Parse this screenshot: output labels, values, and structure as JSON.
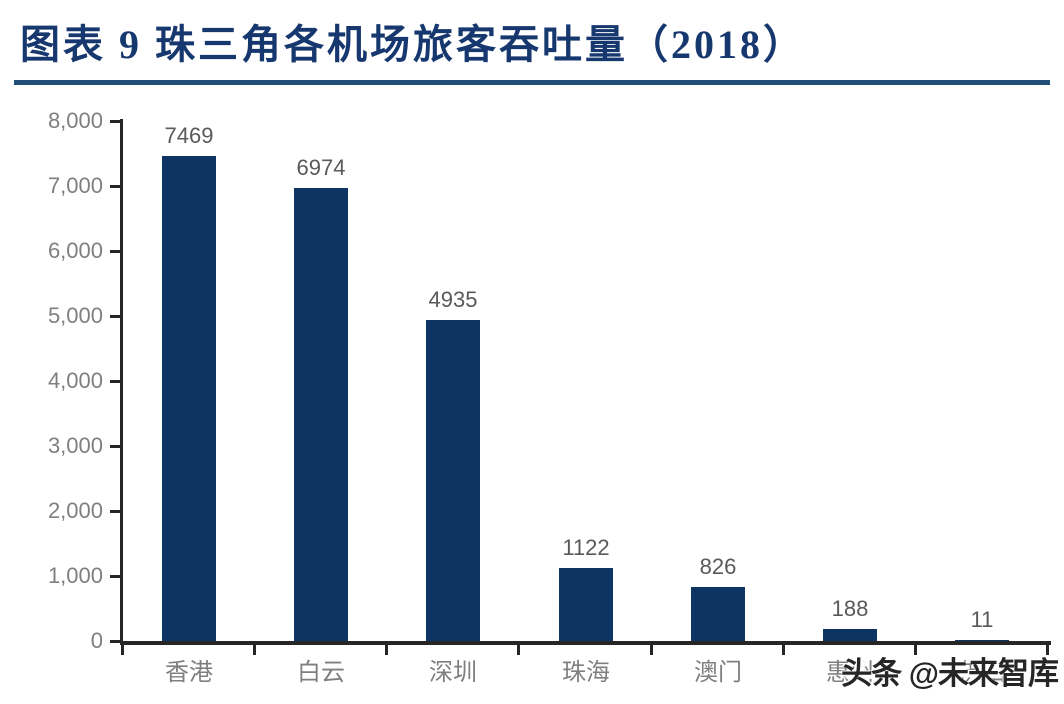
{
  "header": {
    "title": "图表 9  珠三角各机场旅客吞吐量（2018）"
  },
  "chart_data": {
    "type": "bar",
    "title": "珠三角各机场旅客吞吐量（2018）",
    "categories": [
      "香港",
      "白云",
      "深圳",
      "珠海",
      "澳门",
      "惠州",
      "佛山"
    ],
    "values": [
      7469,
      6974,
      4935,
      1122,
      826,
      188,
      11
    ],
    "value_labels": [
      "7469",
      "6974",
      "4935",
      "1122",
      "826",
      "188",
      "11"
    ],
    "xlabel": "",
    "ylabel": "",
    "ylim": [
      0,
      8000
    ],
    "ytick_step": 1000,
    "ytick_labels": [
      "0",
      "1,000",
      "2,000",
      "3,000",
      "4,000",
      "5,000",
      "6,000",
      "7,000",
      "8,000"
    ],
    "grid": false,
    "legend": false
  },
  "watermark": {
    "text": "头条 @未来智库"
  },
  "colors": {
    "bar": "#0e3463",
    "title": "#17386f",
    "rule": "#1f4e79",
    "axis_line": "#262626",
    "axis_labels": "#7f7f7f",
    "data_labels": "#595959",
    "watermark": "#262626"
  }
}
